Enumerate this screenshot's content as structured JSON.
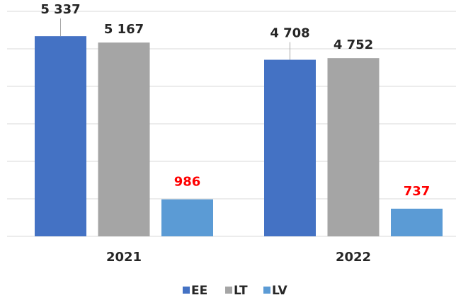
{
  "chart_data": {
    "type": "bar",
    "categories": [
      "2021",
      "2022"
    ],
    "series": [
      {
        "name": "EE",
        "color": "#4472c4",
        "label_color": "#262626",
        "values": [
          5337,
          4708
        ],
        "value_labels": [
          "5 337",
          "4 708"
        ]
      },
      {
        "name": "LT",
        "color": "#a5a5a5",
        "label_color": "#262626",
        "values": [
          5167,
          4752
        ],
        "value_labels": [
          "5 167",
          "4 752"
        ]
      },
      {
        "name": "LV",
        "color": "#5b9bd5",
        "label_color": "#ff0000",
        "values": [
          986,
          737
        ],
        "value_labels": [
          "986",
          "737"
        ]
      }
    ],
    "ylim": [
      0,
      6000
    ],
    "yticks": [
      0,
      1000,
      2000,
      3000,
      4000,
      5000,
      6000
    ],
    "grid": true,
    "legend": "bottom"
  }
}
